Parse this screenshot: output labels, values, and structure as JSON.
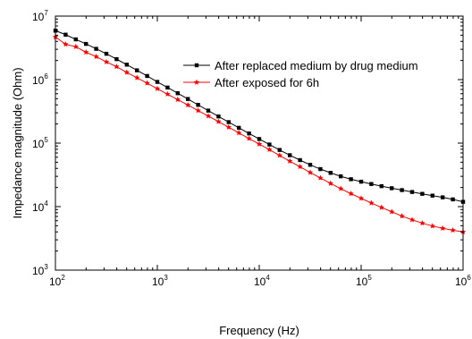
{
  "chart_data": {
    "type": "line",
    "title": "",
    "xlabel": "Frequency (Hz)",
    "ylabel": "Impedance magnitude (Ohm)",
    "xscale": "log",
    "yscale": "log",
    "xlim": [
      100,
      1000000
    ],
    "ylim": [
      1000,
      10000000
    ],
    "x_ticks": [
      {
        "base": "10",
        "exp": "2",
        "value": 100
      },
      {
        "base": "10",
        "exp": "3",
        "value": 1000
      },
      {
        "base": "10",
        "exp": "4",
        "value": 10000
      },
      {
        "base": "10",
        "exp": "5",
        "value": 100000
      },
      {
        "base": "10",
        "exp": "6",
        "value": 1000000
      }
    ],
    "y_ticks": [
      {
        "base": "10",
        "exp": "3",
        "value": 1000
      },
      {
        "base": "10",
        "exp": "4",
        "value": 10000
      },
      {
        "base": "10",
        "exp": "5",
        "value": 100000
      },
      {
        "base": "10",
        "exp": "6",
        "value": 1000000
      },
      {
        "base": "10",
        "exp": "7",
        "value": 10000000
      }
    ],
    "grid": false,
    "legend_position": "top-right",
    "x": [
      100,
      125.9,
      158.5,
      199.5,
      251.2,
      316.2,
      398.1,
      501.2,
      631.0,
      794.3,
      1000,
      1259,
      1585,
      1995,
      2512,
      3162,
      3981,
      5012,
      6310,
      7943,
      10000,
      12589,
      15849,
      19953,
      25119,
      31623,
      39811,
      50119,
      63096,
      79433,
      100000,
      125893,
      158489,
      199526,
      251189,
      316228,
      398107,
      501187,
      630957,
      794328,
      1000000
    ],
    "series": [
      {
        "name": "After replaced medium by drug medium",
        "color": "#000000",
        "marker": "square",
        "values": [
          5900000,
          5100000,
          4300000,
          3650000,
          3050000,
          2550000,
          2100000,
          1720000,
          1400000,
          1140000,
          920000,
          750000,
          610000,
          495000,
          400000,
          325000,
          263000,
          214000,
          174000,
          142000,
          116000,
          95000,
          78000,
          64500,
          54000,
          45500,
          39000,
          34000,
          30000,
          27000,
          24700,
          22700,
          21000,
          19500,
          18200,
          17000,
          15900,
          14900,
          14000,
          13000,
          11900
        ]
      },
      {
        "name": "After exposed for 6h",
        "color": "#ff0000",
        "marker": "star",
        "values": [
          4700000,
          3600000,
          3300000,
          2700000,
          2300000,
          1900000,
          1600000,
          1300000,
          1070000,
          880000,
          720000,
          590000,
          485000,
          398000,
          326000,
          267000,
          218000,
          178000,
          145000,
          118000,
          96500,
          79000,
          64000,
          52000,
          42500,
          34500,
          28300,
          23200,
          19200,
          16000,
          13500,
          11400,
          9700,
          8300,
          7100,
          6200,
          5500,
          4950,
          4550,
          4250,
          4000
        ]
      }
    ]
  }
}
